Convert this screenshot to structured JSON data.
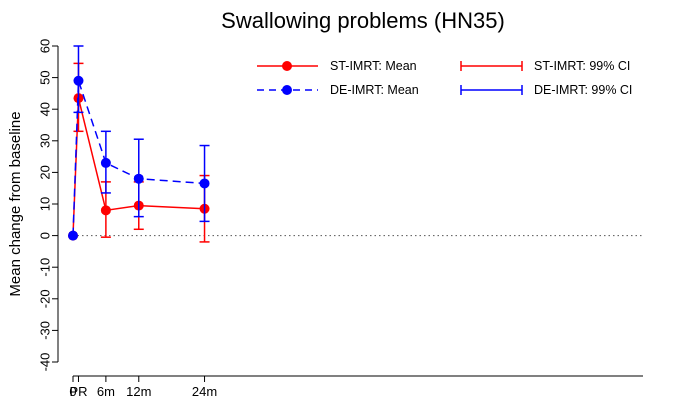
{
  "chart_data": {
    "type": "line",
    "title": "Swallowing problems (HN35)",
    "xlabel": "",
    "ylabel": "Mean change from baseline",
    "ylim": [
      -40,
      60
    ],
    "yticks": [
      -40,
      -30,
      -20,
      -10,
      0,
      10,
      20,
      30,
      40,
      50,
      60
    ],
    "x_positions_weeks": [
      0,
      1,
      6,
      12,
      24
    ],
    "categories": [
      "0",
      "PR",
      "6m",
      "12m",
      "24m"
    ],
    "reference_line": 0,
    "legend_placement": "top-right",
    "grid": false,
    "series": [
      {
        "name": "ST-IMRT: Mean",
        "ci_name": "ST-IMRT: 99% CI",
        "color": "#ff0000",
        "line_style": "solid",
        "values": [
          0,
          43.5,
          8,
          9.5,
          8.5
        ],
        "ci_lower": [
          null,
          33,
          -0.5,
          2,
          -2
        ],
        "ci_upper": [
          null,
          54.5,
          17,
          17,
          19
        ]
      },
      {
        "name": "DE-IMRT: Mean",
        "ci_name": "DE-IMRT: 99% CI",
        "color": "#0000ff",
        "line_style": "dashed",
        "values": [
          0,
          49,
          23,
          18,
          16.5
        ],
        "ci_lower": [
          null,
          39,
          13.5,
          6,
          4.5
        ],
        "ci_upper": [
          null,
          60,
          33,
          30.5,
          28.5
        ]
      }
    ]
  }
}
